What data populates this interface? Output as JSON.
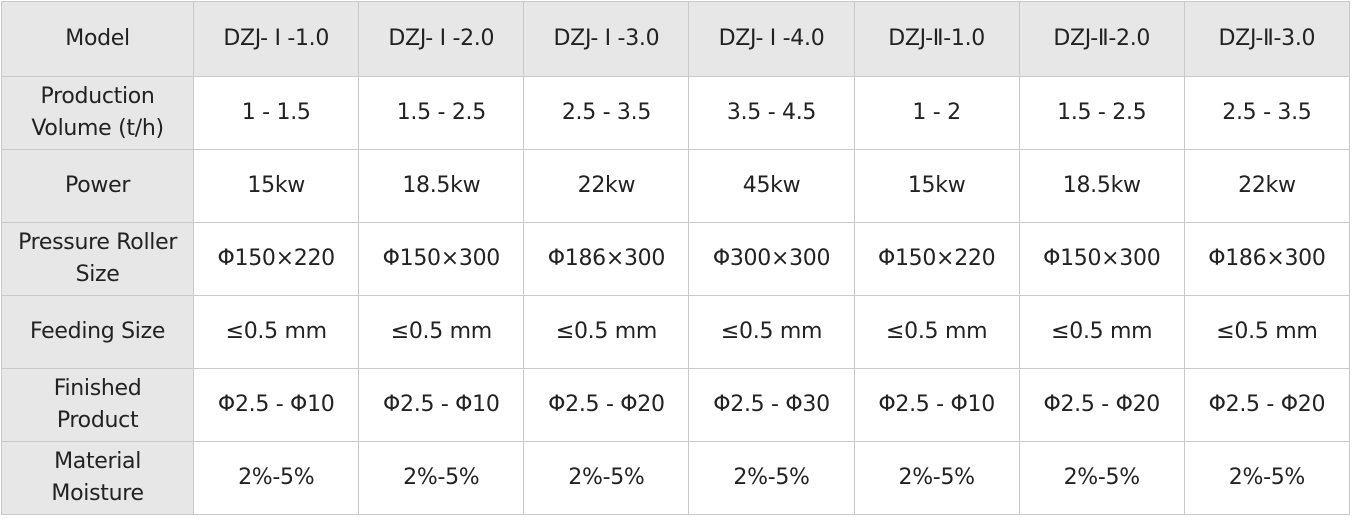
{
  "table": {
    "header": [
      "Model",
      "DZJ- Ⅰ -1.0",
      "DZJ- Ⅰ -2.0",
      "DZJ- Ⅰ -3.0",
      "DZJ- Ⅰ -4.0",
      "DZJ-Ⅱ-1.0",
      "DZJ-Ⅱ-2.0",
      "DZJ-Ⅱ-3.0"
    ],
    "rows": [
      {
        "label": [
          "Production",
          "Volume (t/h)"
        ],
        "cells": [
          "1 - 1.5",
          "1.5 - 2.5",
          "2.5 - 3.5",
          "3.5 - 4.5",
          "1 - 2",
          "1.5 - 2.5",
          "2.5 - 3.5"
        ]
      },
      {
        "label": [
          "Power"
        ],
        "cells": [
          "15kw",
          "18.5kw",
          "22kw",
          "45kw",
          "15kw",
          "18.5kw",
          "22kw"
        ]
      },
      {
        "label": [
          "Pressure Roller",
          "Size"
        ],
        "cells": [
          "Φ150×220",
          "Φ150×300",
          "Φ186×300",
          "Φ300×300",
          "Φ150×220",
          "Φ150×300",
          "Φ186×300"
        ]
      },
      {
        "label": [
          "Feeding Size"
        ],
        "cells": [
          "≤0.5 mm",
          "≤0.5 mm",
          "≤0.5 mm",
          "≤0.5 mm",
          "≤0.5 mm",
          "≤0.5 mm",
          "≤0.5 mm"
        ]
      },
      {
        "label": [
          "Finished",
          "Product"
        ],
        "cells": [
          "Φ2.5 - Φ10",
          "Φ2.5 - Φ10",
          "Φ2.5 - Φ20",
          "Φ2.5 - Φ30",
          "Φ2.5 - Φ10",
          "Φ2.5 - Φ20",
          "Φ2.5 - Φ20"
        ]
      },
      {
        "label": [
          "Material",
          "Moisture"
        ],
        "cells": [
          "2%-5%",
          "2%-5%",
          "2%-5%",
          "2%-5%",
          "2%-5%",
          "2%-5%",
          "2%-5%"
        ]
      }
    ]
  }
}
